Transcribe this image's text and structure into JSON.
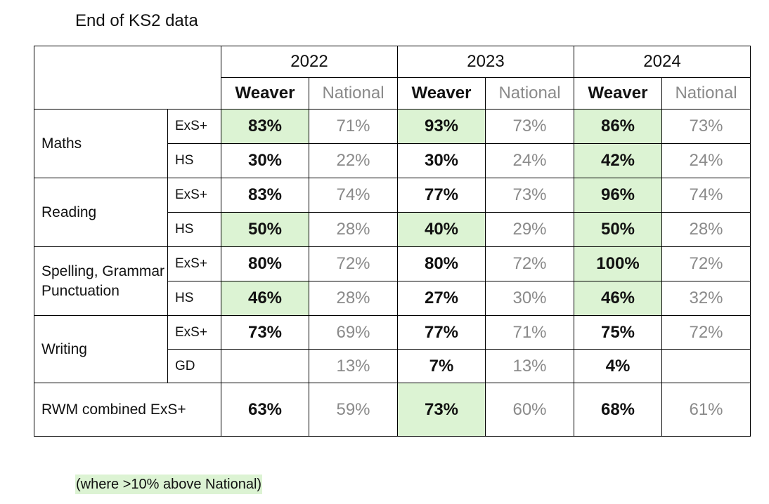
{
  "title": "End of KS2 data",
  "years": [
    "2022",
    "2023",
    "2024"
  ],
  "col_labels": {
    "weaver": "Weaver",
    "national": "National"
  },
  "subjects": [
    {
      "name": "Maths",
      "rows": [
        {
          "measure": "ExS+",
          "values": [
            {
              "w": "83%",
              "n": "71%",
              "hl": true
            },
            {
              "w": "93%",
              "n": "73%",
              "hl": true
            },
            {
              "w": "86%",
              "n": "73%",
              "hl": true
            }
          ]
        },
        {
          "measure": "HS",
          "values": [
            {
              "w": "30%",
              "n": "22%",
              "hl": false
            },
            {
              "w": "30%",
              "n": "24%",
              "hl": false
            },
            {
              "w": "42%",
              "n": "24%",
              "hl": true
            }
          ]
        }
      ]
    },
    {
      "name": "Reading",
      "rows": [
        {
          "measure": "ExS+",
          "values": [
            {
              "w": "83%",
              "n": "74%",
              "hl": false
            },
            {
              "w": "77%",
              "n": "73%",
              "hl": false
            },
            {
              "w": "96%",
              "n": "74%",
              "hl": true
            }
          ]
        },
        {
          "measure": "HS",
          "values": [
            {
              "w": "50%",
              "n": "28%",
              "hl": true
            },
            {
              "w": "40%",
              "n": "29%",
              "hl": true
            },
            {
              "w": "50%",
              "n": "28%",
              "hl": true
            }
          ]
        }
      ]
    },
    {
      "name": "Spelling, Grammar Punctuation",
      "rows": [
        {
          "measure": "ExS+",
          "values": [
            {
              "w": "80%",
              "n": "72%",
              "hl": false
            },
            {
              "w": "80%",
              "n": "72%",
              "hl": false
            },
            {
              "w": "100%",
              "n": "72%",
              "hl": true
            }
          ]
        },
        {
          "measure": "HS",
          "values": [
            {
              "w": "46%",
              "n": "28%",
              "hl": true
            },
            {
              "w": "27%",
              "n": "30%",
              "hl": false
            },
            {
              "w": "46%",
              "n": "32%",
              "hl": true
            }
          ]
        }
      ]
    },
    {
      "name": "Writing",
      "rows": [
        {
          "measure": "ExS+",
          "values": [
            {
              "w": "73%",
              "n": "69%",
              "hl": false
            },
            {
              "w": "77%",
              "n": "71%",
              "hl": false
            },
            {
              "w": "75%",
              "n": "72%",
              "hl": false
            }
          ]
        },
        {
          "measure": "GD",
          "values": [
            {
              "w": "",
              "n": "13%",
              "hl": false
            },
            {
              "w": "7%",
              "n": "13%",
              "hl": false
            },
            {
              "w": "4%",
              "n": "",
              "hl": false
            }
          ]
        }
      ]
    }
  ],
  "combined": {
    "label": "RWM combined ExS+",
    "values": [
      {
        "w": "63%",
        "n": "59%",
        "hl": false
      },
      {
        "w": "73%",
        "n": "60%",
        "hl": true
      },
      {
        "w": "68%",
        "n": "61%",
        "hl": false
      }
    ]
  },
  "legend_note": "(where >10% above National)",
  "highlight_color": "#dcf3d3"
}
